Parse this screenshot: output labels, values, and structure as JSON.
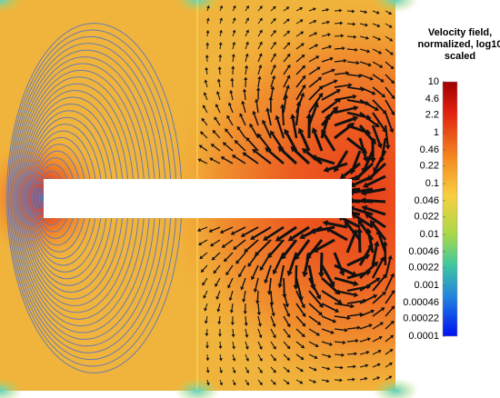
{
  "chart_data": {
    "type": "colorbar-field",
    "colorbar": {
      "title": "Velocity field, normalized, log10 scaled",
      "scale": "log",
      "lim": [
        0.0001,
        10
      ],
      "ticks": [
        10,
        4.6,
        2.2,
        1,
        0.46,
        0.22,
        0.1,
        0.046,
        0.022,
        0.01,
        0.0046,
        0.0022,
        0.001,
        0.00046,
        0.00022,
        0.0001
      ]
    }
  }
}
